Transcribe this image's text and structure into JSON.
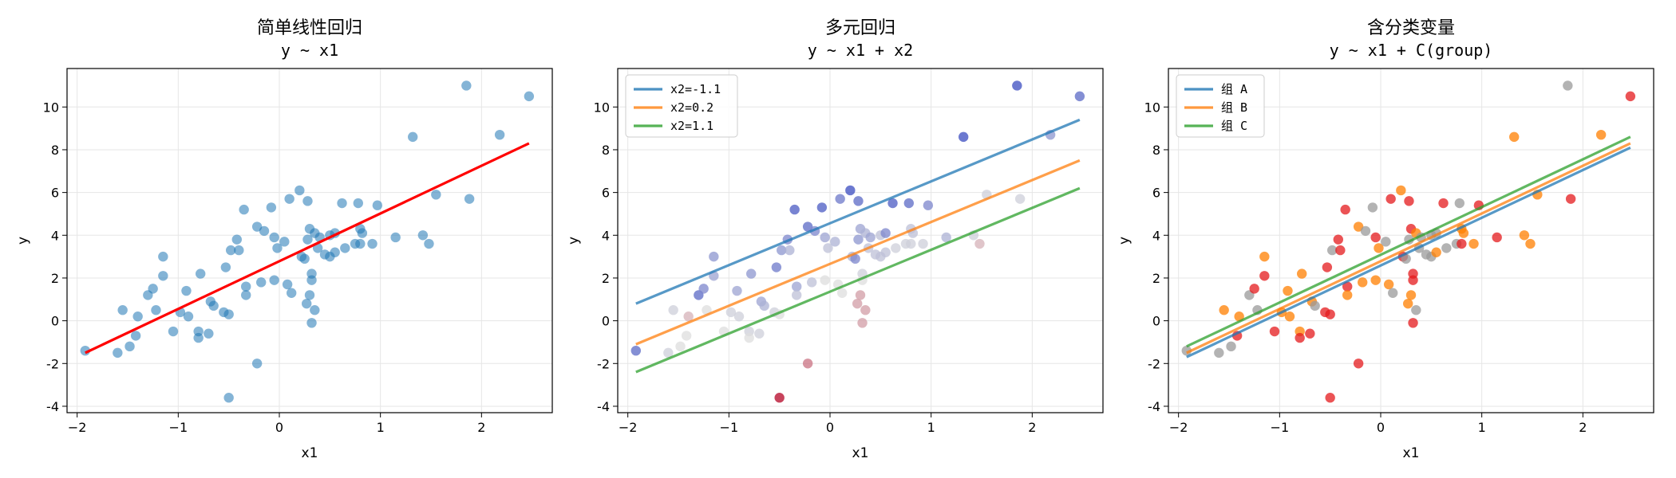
{
  "chart_data": [
    {
      "type": "scatter",
      "title": "简单线性回归",
      "subtitle": "y ~ x1",
      "xlabel": "x1",
      "ylabel": "y",
      "xlim": [
        -2.1,
        2.7
      ],
      "ylim": [
        -4.3,
        11.8
      ],
      "xticks": [
        -2,
        -1,
        0,
        1,
        2
      ],
      "yticks": [
        -4,
        -2,
        0,
        2,
        4,
        6,
        8,
        10
      ],
      "grid": true,
      "colors": {
        "points": "#1f77b4",
        "line": "#ff0000"
      },
      "points": [
        [
          -1.92,
          -1.4
        ],
        [
          -1.6,
          -1.5
        ],
        [
          -1.55,
          0.5
        ],
        [
          -1.48,
          -1.2
        ],
        [
          -1.42,
          -0.7
        ],
        [
          -1.4,
          0.2
        ],
        [
          -1.3,
          1.2
        ],
        [
          -1.25,
          1.5
        ],
        [
          -1.22,
          0.5
        ],
        [
          -1.15,
          3.0
        ],
        [
          -1.15,
          2.1
        ],
        [
          -1.05,
          -0.5
        ],
        [
          -0.98,
          0.4
        ],
        [
          -0.9,
          0.2
        ],
        [
          -0.92,
          1.4
        ],
        [
          -0.8,
          -0.5
        ],
        [
          -0.8,
          -0.8
        ],
        [
          -0.78,
          2.2
        ],
        [
          -0.7,
          -0.6
        ],
        [
          -0.68,
          0.9
        ],
        [
          -0.65,
          0.7
        ],
        [
          -0.55,
          0.4
        ],
        [
          -0.53,
          2.5
        ],
        [
          -0.5,
          0.3
        ],
        [
          -0.48,
          3.3
        ],
        [
          -0.42,
          3.8
        ],
        [
          -0.4,
          3.3
        ],
        [
          -0.35,
          5.2
        ],
        [
          -0.33,
          1.6
        ],
        [
          -0.33,
          1.2
        ],
        [
          -0.22,
          4.4
        ],
        [
          -0.22,
          -2.0
        ],
        [
          -0.15,
          4.2
        ],
        [
          -0.18,
          1.8
        ],
        [
          -0.08,
          5.3
        ],
        [
          -0.05,
          3.9
        ],
        [
          -0.02,
          3.4
        ],
        [
          0.05,
          3.7
        ],
        [
          0.08,
          1.7
        ],
        [
          0.1,
          5.7
        ],
        [
          0.12,
          1.3
        ],
        [
          -0.05,
          1.9
        ],
        [
          0.2,
          6.1
        ],
        [
          0.22,
          3.0
        ],
        [
          0.25,
          2.9
        ],
        [
          0.28,
          5.6
        ],
        [
          0.28,
          3.8
        ],
        [
          0.3,
          4.3
        ],
        [
          0.3,
          1.2
        ],
        [
          0.32,
          2.2
        ],
        [
          0.32,
          1.9
        ],
        [
          0.32,
          -0.1
        ],
        [
          0.35,
          4.1
        ],
        [
          0.38,
          3.4
        ],
        [
          0.4,
          3.9
        ],
        [
          0.45,
          3.1
        ],
        [
          0.5,
          3.0
        ],
        [
          0.5,
          4.0
        ],
        [
          0.55,
          4.1
        ],
        [
          0.55,
          3.2
        ],
        [
          0.62,
          5.5
        ],
        [
          0.65,
          3.4
        ],
        [
          0.75,
          3.6
        ],
        [
          0.78,
          5.5
        ],
        [
          0.8,
          4.3
        ],
        [
          0.82,
          4.1
        ],
        [
          0.8,
          3.6
        ],
        [
          0.92,
          3.6
        ],
        [
          0.97,
          5.4
        ],
        [
          1.15,
          3.9
        ],
        [
          1.32,
          8.6
        ],
        [
          1.42,
          4.0
        ],
        [
          1.48,
          3.6
        ],
        [
          1.55,
          5.9
        ],
        [
          1.85,
          11.0
        ],
        [
          1.88,
          5.7
        ],
        [
          2.18,
          8.7
        ],
        [
          2.47,
          10.5
        ],
        [
          -0.5,
          -3.6
        ],
        [
          0.35,
          0.5
        ],
        [
          0.27,
          0.8
        ]
      ],
      "fit_line": {
        "x": [
          -1.92,
          2.47
        ],
        "y": [
          -1.5,
          8.3
        ]
      }
    },
    {
      "type": "scatter",
      "title": "多元回归",
      "subtitle": "y ~ x1 + x2",
      "xlabel": "x1",
      "ylabel": "y",
      "xlim": [
        -2.1,
        2.7
      ],
      "ylim": [
        -4.3,
        11.8
      ],
      "xticks": [
        -2,
        -1,
        0,
        1,
        2
      ],
      "yticks": [
        -4,
        -2,
        0,
        2,
        4,
        6,
        8,
        10
      ],
      "grid": true,
      "legend": {
        "loc": "upper-left"
      },
      "series": [
        {
          "name": "x2=-1.1",
          "color": "#1f77b4",
          "x": [
            -1.92,
            2.47
          ],
          "y": [
            0.8,
            9.4
          ]
        },
        {
          "name": "x2=0.2",
          "color": "#ff7f0e",
          "x": [
            -1.92,
            2.47
          ],
          "y": [
            -1.1,
            7.5
          ]
        },
        {
          "name": "x2=1.1",
          "color": "#2ca02c",
          "x": [
            -1.92,
            2.47
          ],
          "y": [
            -2.4,
            6.2
          ]
        }
      ],
      "points": [
        [
          -1.92,
          -1.4,
          0.1
        ],
        [
          -1.6,
          -1.5,
          0.45
        ],
        [
          -1.55,
          0.5,
          0.45
        ],
        [
          -1.48,
          -1.2,
          0.5
        ],
        [
          -1.42,
          -0.7,
          0.5
        ],
        [
          -1.4,
          0.2,
          0.6
        ],
        [
          -1.3,
          1.2,
          0.1
        ],
        [
          -1.25,
          1.5,
          0.2
        ],
        [
          -1.22,
          0.5,
          0.5
        ],
        [
          -1.15,
          3.0,
          0.25
        ],
        [
          -1.15,
          2.1,
          0.3
        ],
        [
          -1.05,
          -0.5,
          0.5
        ],
        [
          -0.98,
          0.4,
          0.45
        ],
        [
          -0.9,
          0.2,
          0.45
        ],
        [
          -0.92,
          1.4,
          0.3
        ],
        [
          -0.8,
          -0.5,
          0.45
        ],
        [
          -0.8,
          -0.8,
          0.5
        ],
        [
          -0.78,
          2.2,
          0.25
        ],
        [
          -0.7,
          -0.6,
          0.45
        ],
        [
          -0.68,
          0.9,
          0.3
        ],
        [
          -0.65,
          0.7,
          0.35
        ],
        [
          -0.55,
          0.4,
          0.45
        ],
        [
          -0.53,
          2.5,
          0.15
        ],
        [
          -0.5,
          0.3,
          0.5
        ],
        [
          -0.48,
          3.3,
          0.25
        ],
        [
          -0.42,
          3.8,
          0.2
        ],
        [
          -0.4,
          3.3,
          0.35
        ],
        [
          -0.35,
          5.2,
          0.05
        ],
        [
          -0.33,
          1.6,
          0.3
        ],
        [
          -0.33,
          1.2,
          0.4
        ],
        [
          -0.22,
          4.4,
          0.1
        ],
        [
          -0.22,
          -2.0,
          0.75
        ],
        [
          -0.15,
          4.2,
          0.2
        ],
        [
          -0.18,
          1.8,
          0.4
        ],
        [
          -0.08,
          5.3,
          0.05
        ],
        [
          -0.05,
          3.9,
          0.3
        ],
        [
          -0.02,
          3.4,
          0.4
        ],
        [
          0.05,
          3.7,
          0.35
        ],
        [
          0.08,
          1.7,
          0.5
        ],
        [
          0.1,
          5.7,
          0.15
        ],
        [
          0.12,
          1.3,
          0.5
        ],
        [
          -0.05,
          1.9,
          0.5
        ],
        [
          0.2,
          6.1,
          0.0
        ],
        [
          0.22,
          3.0,
          0.35
        ],
        [
          0.25,
          2.9,
          0.2
        ],
        [
          0.28,
          5.6,
          0.1
        ],
        [
          0.28,
          3.8,
          0.25
        ],
        [
          0.3,
          4.3,
          0.3
        ],
        [
          0.3,
          1.2,
          0.65
        ],
        [
          0.32,
          2.2,
          0.45
        ],
        [
          0.32,
          1.9,
          0.5
        ],
        [
          0.32,
          -0.1,
          0.65
        ],
        [
          0.35,
          4.1,
          0.35
        ],
        [
          0.38,
          3.4,
          0.4
        ],
        [
          0.4,
          3.9,
          0.3
        ],
        [
          0.45,
          3.1,
          0.4
        ],
        [
          0.5,
          3.0,
          0.4
        ],
        [
          0.5,
          4.0,
          0.4
        ],
        [
          0.55,
          4.1,
          0.2
        ],
        [
          0.55,
          3.2,
          0.4
        ],
        [
          0.62,
          5.5,
          0.05
        ],
        [
          0.65,
          3.4,
          0.45
        ],
        [
          0.75,
          3.6,
          0.45
        ],
        [
          0.78,
          5.5,
          0.1
        ],
        [
          0.8,
          4.3,
          0.4
        ],
        [
          0.82,
          4.1,
          0.4
        ],
        [
          0.8,
          3.6,
          0.45
        ],
        [
          0.92,
          3.6,
          0.45
        ],
        [
          0.97,
          5.4,
          0.2
        ],
        [
          1.15,
          3.9,
          0.35
        ],
        [
          1.32,
          8.6,
          0.0
        ],
        [
          1.42,
          4.0,
          0.45
        ],
        [
          1.48,
          3.6,
          0.6
        ],
        [
          1.55,
          5.9,
          0.45
        ],
        [
          1.85,
          11.0,
          0.0
        ],
        [
          1.88,
          5.7,
          0.45
        ],
        [
          2.18,
          8.7,
          0.25
        ],
        [
          2.47,
          10.5,
          0.1
        ],
        [
          -0.5,
          -3.6,
          1.0
        ],
        [
          0.35,
          0.5,
          0.65
        ],
        [
          0.27,
          0.8,
          0.65
        ]
      ]
    },
    {
      "type": "scatter",
      "title": "含分类变量",
      "subtitle": "y ~ x1 + C(group)",
      "xlabel": "x1",
      "ylabel": "y",
      "xlim": [
        -2.1,
        2.7
      ],
      "ylim": [
        -4.3,
        11.8
      ],
      "xticks": [
        -2,
        -1,
        0,
        1,
        2
      ],
      "yticks": [
        -4,
        -2,
        0,
        2,
        4,
        6,
        8,
        10
      ],
      "grid": true,
      "legend": {
        "loc": "upper-left"
      },
      "series": [
        {
          "name": "组 A",
          "color": "#1f77b4",
          "x": [
            -1.92,
            2.47
          ],
          "y": [
            -1.7,
            8.1
          ]
        },
        {
          "name": "组 B",
          "color": "#ff7f0e",
          "x": [
            -1.92,
            2.47
          ],
          "y": [
            -1.5,
            8.3
          ]
        },
        {
          "name": "组 C",
          "color": "#2ca02c",
          "x": [
            -1.92,
            2.47
          ],
          "y": [
            -1.2,
            8.6
          ]
        }
      ],
      "group_colors": [
        "#e41a1c",
        "#ff7f00",
        "#999999"
      ],
      "points": [
        [
          -1.92,
          -1.4,
          2
        ],
        [
          -1.6,
          -1.5,
          2
        ],
        [
          -1.55,
          0.5,
          1
        ],
        [
          -1.48,
          -1.2,
          2
        ],
        [
          -1.42,
          -0.7,
          0
        ],
        [
          -1.4,
          0.2,
          1
        ],
        [
          -1.3,
          1.2,
          2
        ],
        [
          -1.25,
          1.5,
          0
        ],
        [
          -1.22,
          0.5,
          2
        ],
        [
          -1.15,
          3.0,
          1
        ],
        [
          -1.15,
          2.1,
          0
        ],
        [
          -1.05,
          -0.5,
          0
        ],
        [
          -0.98,
          0.4,
          1
        ],
        [
          -0.9,
          0.2,
          1
        ],
        [
          -0.92,
          1.4,
          1
        ],
        [
          -0.8,
          -0.5,
          1
        ],
        [
          -0.8,
          -0.8,
          0
        ],
        [
          -0.78,
          2.2,
          1
        ],
        [
          -0.7,
          -0.6,
          0
        ],
        [
          -0.68,
          0.9,
          1
        ],
        [
          -0.65,
          0.7,
          2
        ],
        [
          -0.55,
          0.4,
          0
        ],
        [
          -0.53,
          2.5,
          0
        ],
        [
          -0.5,
          0.3,
          0
        ],
        [
          -0.48,
          3.3,
          2
        ],
        [
          -0.42,
          3.8,
          0
        ],
        [
          -0.4,
          3.3,
          0
        ],
        [
          -0.35,
          5.2,
          0
        ],
        [
          -0.33,
          1.6,
          0
        ],
        [
          -0.33,
          1.2,
          1
        ],
        [
          -0.22,
          4.4,
          1
        ],
        [
          -0.22,
          -2.0,
          0
        ],
        [
          -0.15,
          4.2,
          2
        ],
        [
          -0.18,
          1.8,
          1
        ],
        [
          -0.08,
          5.3,
          2
        ],
        [
          -0.05,
          3.9,
          0
        ],
        [
          -0.02,
          3.4,
          1
        ],
        [
          0.05,
          3.7,
          2
        ],
        [
          0.08,
          1.7,
          1
        ],
        [
          0.1,
          5.7,
          0
        ],
        [
          0.12,
          1.3,
          2
        ],
        [
          -0.05,
          1.9,
          1
        ],
        [
          0.2,
          6.1,
          1
        ],
        [
          0.22,
          3.0,
          0
        ],
        [
          0.25,
          2.9,
          2
        ],
        [
          0.28,
          5.6,
          0
        ],
        [
          0.28,
          3.8,
          2
        ],
        [
          0.3,
          4.3,
          0
        ],
        [
          0.3,
          1.2,
          1
        ],
        [
          0.32,
          2.2,
          0
        ],
        [
          0.32,
          1.9,
          0
        ],
        [
          0.32,
          -0.1,
          0
        ],
        [
          0.35,
          4.1,
          1
        ],
        [
          0.38,
          3.4,
          2
        ],
        [
          0.4,
          3.9,
          2
        ],
        [
          0.45,
          3.1,
          2
        ],
        [
          0.5,
          3.0,
          2
        ],
        [
          0.5,
          4.0,
          2
        ],
        [
          0.55,
          4.1,
          2
        ],
        [
          0.55,
          3.2,
          1
        ],
        [
          0.62,
          5.5,
          0
        ],
        [
          0.65,
          3.4,
          2
        ],
        [
          0.75,
          3.6,
          2
        ],
        [
          0.78,
          5.5,
          2
        ],
        [
          0.8,
          4.3,
          1
        ],
        [
          0.82,
          4.1,
          1
        ],
        [
          0.8,
          3.6,
          0
        ],
        [
          0.92,
          3.6,
          1
        ],
        [
          0.97,
          5.4,
          0
        ],
        [
          1.15,
          3.9,
          0
        ],
        [
          1.32,
          8.6,
          1
        ],
        [
          1.42,
          4.0,
          1
        ],
        [
          1.48,
          3.6,
          1
        ],
        [
          1.55,
          5.9,
          1
        ],
        [
          1.85,
          11.0,
          2
        ],
        [
          1.88,
          5.7,
          0
        ],
        [
          2.18,
          8.7,
          1
        ],
        [
          2.47,
          10.5,
          0
        ],
        [
          -0.5,
          -3.6,
          0
        ],
        [
          0.35,
          0.5,
          2
        ],
        [
          0.27,
          0.8,
          1
        ]
      ]
    }
  ]
}
